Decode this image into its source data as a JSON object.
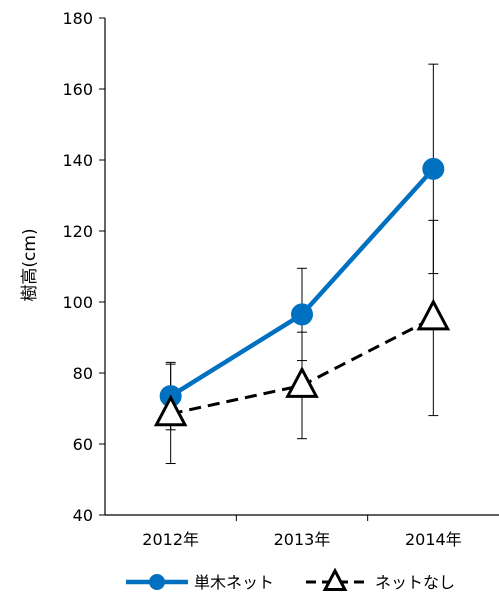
{
  "chart_data": {
    "type": "line",
    "ylabel": "樹高(cm)",
    "ylim": [
      40,
      180
    ],
    "yticks": [
      40,
      60,
      80,
      100,
      120,
      140,
      160,
      180
    ],
    "categories": [
      "2012年",
      "2013年",
      "2014年"
    ],
    "grid": false,
    "legend_position": "bottom",
    "series": [
      {
        "name": "単木ネット",
        "values": [
          73.5,
          96.5,
          137.5
        ],
        "error": [
          9.5,
          13,
          29.5
        ],
        "color": "#0070C0",
        "marker": "circle",
        "line_style": "solid"
      },
      {
        "name": "ネットなし",
        "values": [
          68.5,
          76.5,
          95.5
        ],
        "error": [
          14,
          15,
          27.5
        ],
        "color": "#000000",
        "marker": "triangle-open",
        "line_style": "dashed"
      }
    ]
  }
}
